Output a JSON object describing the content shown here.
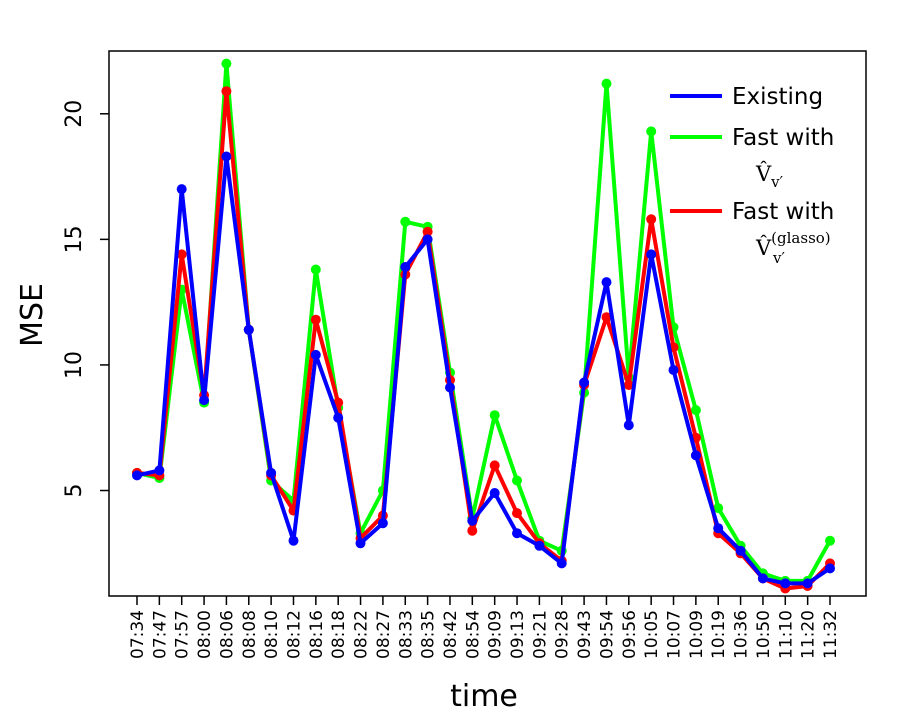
{
  "chart_data": {
    "type": "line",
    "title": "",
    "xlabel": "time",
    "ylabel": "MSE",
    "ylim": [
      0.8,
      22.5
    ],
    "yticks": [
      5,
      10,
      15,
      20
    ],
    "grid": false,
    "legend_position": "top-right",
    "categories": [
      "07:34",
      "07:47",
      "07:57",
      "08:00",
      "08:06",
      "08:08",
      "08:10",
      "08:12",
      "08:16",
      "08:18",
      "08:22",
      "08:27",
      "08:33",
      "08:35",
      "08:42",
      "08:54",
      "09:09",
      "09:13",
      "09:21",
      "09:28",
      "09:43",
      "09:54",
      "09:56",
      "10:05",
      "10:07",
      "10:09",
      "10:19",
      "10:36",
      "10:50",
      "11:10",
      "11:20",
      "11:32"
    ],
    "series": [
      {
        "name": "Fast with",
        "legend_math": "V̂_{v′}",
        "color": "#00ff00",
        "values": [
          5.7,
          5.5,
          13.0,
          8.5,
          22.0,
          11.4,
          5.4,
          4.6,
          13.8,
          8.3,
          3.3,
          5.0,
          15.7,
          15.5,
          9.7,
          3.9,
          8.0,
          5.4,
          3.0,
          2.6,
          8.9,
          21.2,
          9.5,
          19.3,
          11.5,
          8.2,
          4.3,
          2.8,
          1.7,
          1.4,
          1.4,
          3.0
        ]
      },
      {
        "name": "Fast with",
        "legend_math": "V̂_{v′}^{(glasso)}",
        "color": "#ff0000",
        "values": [
          5.7,
          5.6,
          14.4,
          8.8,
          20.9,
          11.4,
          5.6,
          4.2,
          11.8,
          8.5,
          3.1,
          4.0,
          13.6,
          15.3,
          9.4,
          3.4,
          6.0,
          4.1,
          2.9,
          2.2,
          9.2,
          11.9,
          9.2,
          15.8,
          10.7,
          7.1,
          3.3,
          2.5,
          1.5,
          1.1,
          1.2,
          2.1
        ]
      },
      {
        "name": "Existing",
        "legend_math": "",
        "color": "#0000ff",
        "values": [
          5.6,
          5.8,
          17.0,
          8.6,
          18.3,
          11.4,
          5.7,
          3.0,
          10.4,
          7.9,
          2.9,
          3.7,
          13.9,
          15.0,
          9.1,
          3.8,
          4.9,
          3.3,
          2.8,
          2.1,
          9.3,
          13.3,
          7.6,
          14.4,
          9.8,
          6.4,
          3.5,
          2.6,
          1.5,
          1.3,
          1.3,
          1.9
        ]
      }
    ],
    "legend": [
      {
        "label": "Existing",
        "sub": "",
        "sup": "",
        "color": "#0000ff"
      },
      {
        "label": "Fast with",
        "sub": "v′",
        "sup": "",
        "color": "#00ff00"
      },
      {
        "label": "Fast with",
        "sub": "v′",
        "sup": "(glasso)",
        "color": "#ff0000"
      }
    ]
  }
}
